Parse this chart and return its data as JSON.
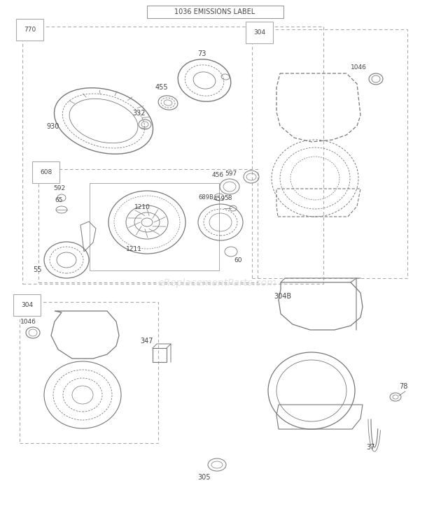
{
  "title": "1036 EMISSIONS LABEL",
  "bg_color": "#ffffff",
  "border_color": "#aaaaaa",
  "text_color": "#444444",
  "watermark": "eReplacementParts.com",
  "watermark_color": "#dddddd",
  "lc": "#aaaaaa",
  "lc_dark": "#777777"
}
